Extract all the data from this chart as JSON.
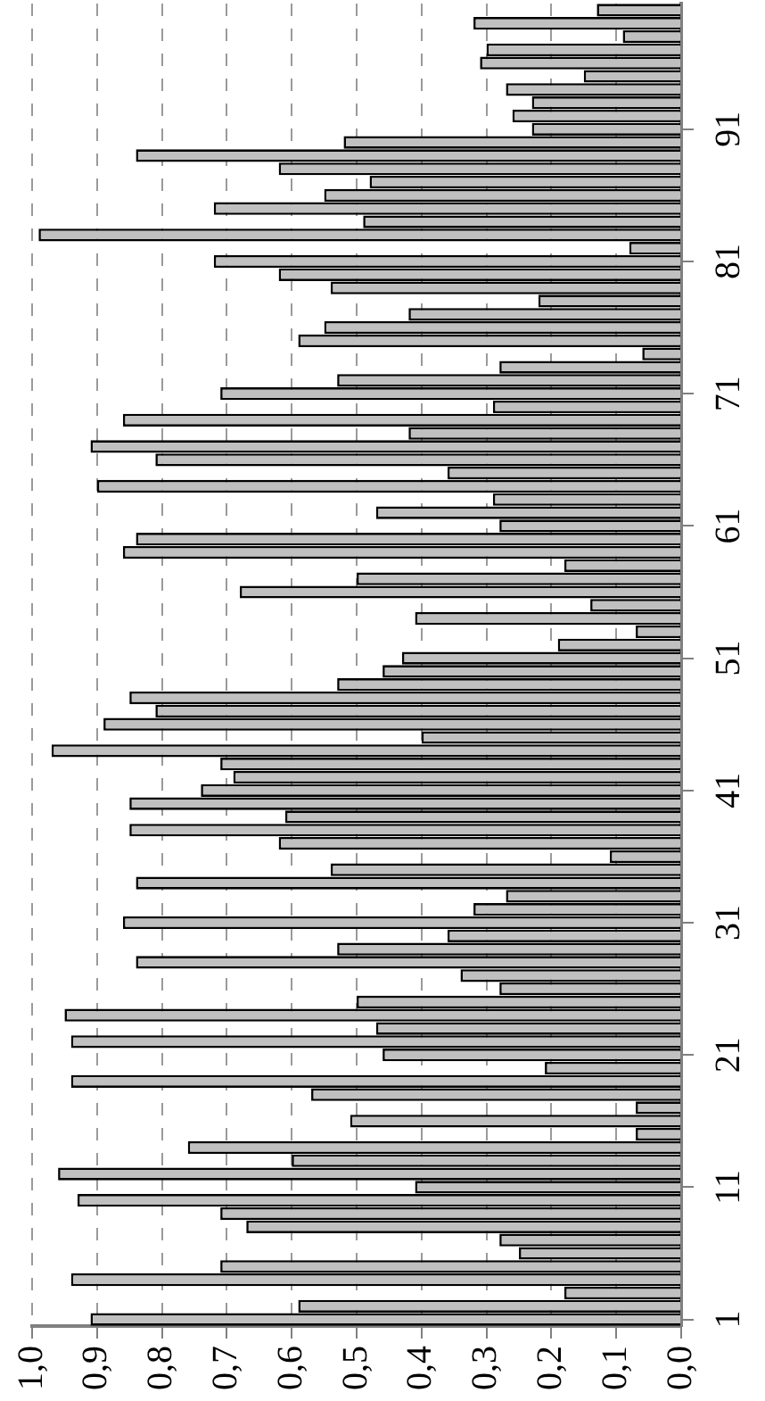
{
  "chart_data": {
    "type": "bar",
    "orientation": "horizontal",
    "categories": [
      null,
      null,
      null,
      null,
      null,
      null,
      null,
      null,
      null,
      "91",
      null,
      null,
      null,
      null,
      null,
      null,
      null,
      null,
      null,
      "81",
      null,
      null,
      null,
      null,
      null,
      null,
      null,
      null,
      null,
      "71",
      null,
      null,
      null,
      null,
      null,
      null,
      null,
      null,
      null,
      "61",
      null,
      null,
      null,
      null,
      null,
      null,
      null,
      null,
      null,
      "51",
      null,
      null,
      null,
      null,
      null,
      null,
      null,
      null,
      null,
      "41",
      null,
      null,
      null,
      null,
      null,
      null,
      null,
      null,
      null,
      "31",
      null,
      null,
      null,
      null,
      null,
      null,
      null,
      null,
      null,
      "21",
      null,
      null,
      null,
      null,
      null,
      null,
      null,
      null,
      null,
      "11",
      null,
      null,
      null,
      null,
      null,
      null,
      null,
      null,
      null,
      "1"
    ],
    "values": [
      0.13,
      0.32,
      0.09,
      0.3,
      0.31,
      0.15,
      0.27,
      0.23,
      0.26,
      0.23,
      0.52,
      0.84,
      0.62,
      0.48,
      0.55,
      0.72,
      0.49,
      0.99,
      0.08,
      0.72,
      0.62,
      0.54,
      0.22,
      0.42,
      0.55,
      0.59,
      0.06,
      0.28,
      0.53,
      0.71,
      0.29,
      0.86,
      0.42,
      0.91,
      0.81,
      0.36,
      0.9,
      0.29,
      0.47,
      0.28,
      0.84,
      0.86,
      0.18,
      0.5,
      0.68,
      0.14,
      0.41,
      0.07,
      0.19,
      0.43,
      0.46,
      0.53,
      0.85,
      0.81,
      0.89,
      0.4,
      0.97,
      0.71,
      0.69,
      0.74,
      0.85,
      0.61,
      0.85,
      0.62,
      0.11,
      0.54,
      0.84,
      0.27,
      0.32,
      0.86,
      0.36,
      0.53,
      0.84,
      0.34,
      0.28,
      0.5,
      0.95,
      0.47,
      0.94,
      0.46,
      0.21,
      0.94,
      0.57,
      0.07,
      0.51,
      0.07,
      0.76,
      0.6,
      0.96,
      0.41,
      0.93,
      0.71,
      0.67,
      0.28,
      0.25,
      0.71,
      0.94,
      0.18,
      0.59,
      0.91
    ],
    "color": "#c0c0c0",
    "xlim": [
      1,
      0
    ],
    "xticks": [
      {
        "value": 1,
        "label": "1,0"
      },
      {
        "value": 0.9,
        "label": "0,9"
      },
      {
        "value": 0.8,
        "label": "0,8"
      },
      {
        "value": 0.7,
        "label": "0,7"
      },
      {
        "value": 0.6,
        "label": "0,6"
      },
      {
        "value": 0.5,
        "label": "0,5"
      },
      {
        "value": 0.4,
        "label": "0,4"
      },
      {
        "value": 0.3,
        "label": "0,3"
      },
      {
        "value": 0.2,
        "label": "0,2"
      },
      {
        "value": 0.1,
        "label": "0,1"
      },
      {
        "value": 0,
        "label": "0,0"
      }
    ],
    "grid": "x",
    "legend": false
  }
}
